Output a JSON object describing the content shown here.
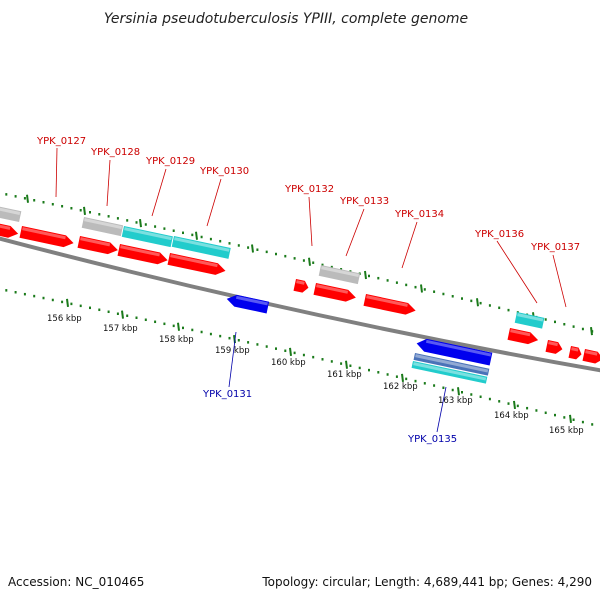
{
  "title": "Yersinia pseudotuberculosis YPIII, complete genome",
  "accession": "Accession: NC_010465",
  "topology": "Topology: circular; Length: 4,689,441 bp; Genes: 4,290",
  "colors": {
    "forward_cds": "#ff0000",
    "reverse_cds": "#0000ee",
    "rna": "#22cccc",
    "other": "#bbbbbb",
    "backbone": "#808080",
    "ticks": "#1a7a1a",
    "forward_label": "#cc0000",
    "reverse_label": "#0000aa"
  },
  "ruler": [
    "156 kbp",
    "157 kbp",
    "158 kbp",
    "159 kbp",
    "160 kbp",
    "161 kbp",
    "162 kbp",
    "163 kbp",
    "164 kbp",
    "165 kbp"
  ],
  "forward_genes": [
    {
      "label": "YPK_0127"
    },
    {
      "label": "YPK_0128"
    },
    {
      "label": "YPK_0129"
    },
    {
      "label": "YPK_0130"
    },
    {
      "label": "YPK_0132"
    },
    {
      "label": "YPK_0133"
    },
    {
      "label": "YPK_0134"
    },
    {
      "label": "YPK_0136"
    },
    {
      "label": "YPK_0137"
    }
  ],
  "reverse_genes": [
    {
      "label": "YPK_0131"
    },
    {
      "label": "YPK_0135"
    }
  ]
}
